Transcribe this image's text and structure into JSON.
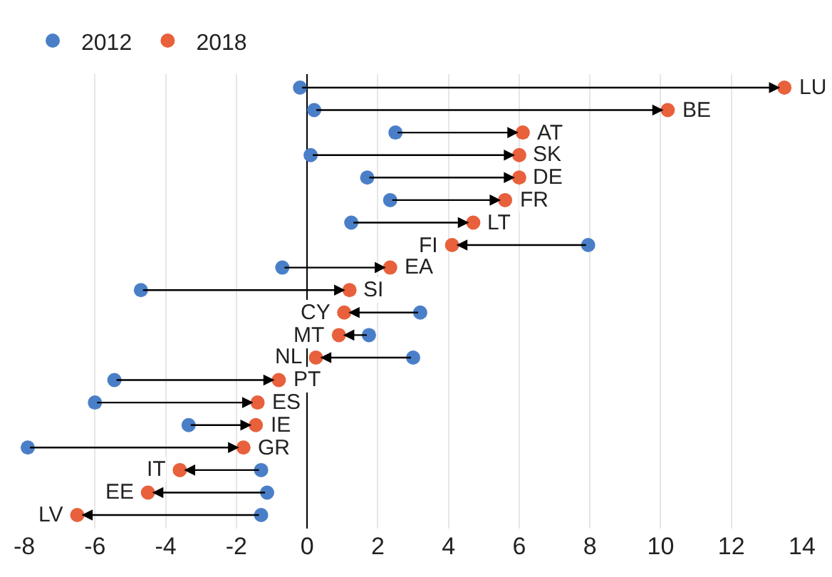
{
  "chart_data": {
    "type": "scatter",
    "categories": [
      "LU",
      "BE",
      "AT",
      "SK",
      "DE",
      "FR",
      "LT",
      "FI",
      "EA",
      "SI",
      "CY",
      "MT",
      "NL",
      "PT",
      "ES",
      "IE",
      "GR",
      "IT",
      "EE",
      "LV"
    ],
    "series": [
      {
        "name": "2012",
        "color": "#4a7fc8",
        "values": [
          -0.2,
          0.2,
          2.5,
          0.1,
          1.7,
          2.35,
          1.25,
          7.95,
          -0.7,
          -4.7,
          3.2,
          1.75,
          3.0,
          -5.45,
          -6.0,
          -3.35,
          -7.9,
          -1.3,
          -1.13,
          -1.3
        ]
      },
      {
        "name": "2018",
        "color": "#e8603c",
        "values": [
          13.5,
          10.2,
          6.1,
          6.0,
          6.0,
          5.6,
          4.7,
          4.1,
          2.35,
          1.2,
          1.05,
          0.9,
          0.25,
          -0.8,
          -1.4,
          -1.45,
          -1.8,
          -3.6,
          -4.5,
          -6.5
        ]
      }
    ],
    "orientation": "horizontal",
    "xlim": [
      -8,
      14
    ],
    "xticks": [
      -8,
      -6,
      -4,
      -2,
      0,
      2,
      4,
      6,
      8,
      10,
      12,
      14
    ],
    "grid": "x",
    "legend": "top left",
    "marker": "circle",
    "tick_labels": "x"
  }
}
